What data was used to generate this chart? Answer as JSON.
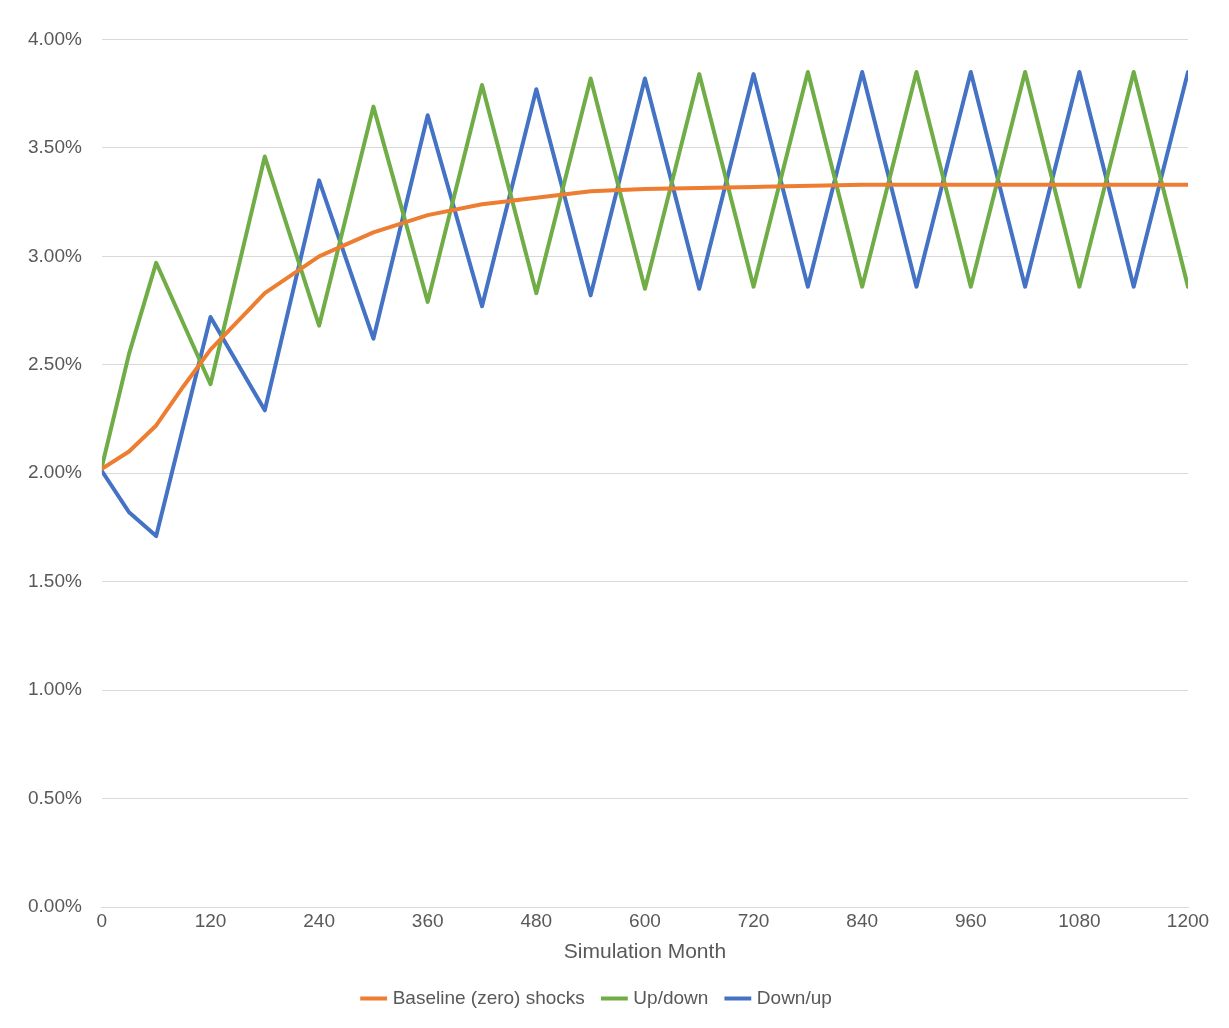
{
  "chart_data": {
    "type": "line",
    "xlabel": "Simulation Month",
    "xlim": [
      0,
      1200
    ],
    "xticks": [
      0,
      120,
      240,
      360,
      480,
      600,
      720,
      840,
      960,
      1080,
      1200
    ],
    "ylim": [
      0,
      4
    ],
    "yticks": [
      {
        "value": 0,
        "label": "0.00%"
      },
      {
        "value": 0.5,
        "label": "0.50%"
      },
      {
        "value": 1,
        "label": "1.00%"
      },
      {
        "value": 1.5,
        "label": "1.50%"
      },
      {
        "value": 2,
        "label": "2.00%"
      },
      {
        "value": 2.5,
        "label": "2.50%"
      },
      {
        "value": 3,
        "label": "3.00%"
      },
      {
        "value": 3.5,
        "label": "3.50%"
      },
      {
        "value": 4,
        "label": "4.00%"
      }
    ],
    "grid": "y",
    "legend": "bottom",
    "marker": "none",
    "line_style": "solid",
    "series": [
      {
        "name": "Baseline (zero) shocks",
        "color": "#ed7d31",
        "x": [
          0,
          30,
          60,
          90,
          120,
          180,
          240,
          300,
          360,
          420,
          480,
          540,
          600,
          720,
          840,
          1200
        ],
        "values": [
          2.02,
          2.1,
          2.22,
          2.4,
          2.57,
          2.83,
          3.0,
          3.11,
          3.19,
          3.24,
          3.27,
          3.3,
          3.31,
          3.32,
          3.33,
          3.33
        ]
      },
      {
        "name": "Up/down",
        "color": "#70ad47",
        "x": [
          0,
          30,
          60,
          120,
          180,
          240,
          300,
          360,
          420,
          480,
          540,
          600,
          660,
          720,
          780,
          840,
          900,
          960,
          1020,
          1080,
          1140,
          1200
        ],
        "values": [
          2.03,
          2.55,
          2.97,
          2.41,
          3.46,
          2.68,
          3.69,
          2.79,
          3.79,
          2.83,
          3.82,
          2.85,
          3.84,
          2.86,
          3.85,
          2.86,
          3.85,
          2.86,
          3.85,
          2.86,
          3.85,
          2.86
        ]
      },
      {
        "name": "Down/up",
        "color": "#4472c4",
        "x": [
          0,
          30,
          60,
          120,
          180,
          240,
          300,
          360,
          420,
          480,
          540,
          600,
          660,
          720,
          780,
          840,
          900,
          960,
          1020,
          1080,
          1140,
          1200
        ],
        "values": [
          2.01,
          1.82,
          1.71,
          2.72,
          2.29,
          3.35,
          2.62,
          3.65,
          2.77,
          3.77,
          2.82,
          3.82,
          2.85,
          3.84,
          2.86,
          3.85,
          2.86,
          3.85,
          2.86,
          3.85,
          2.86,
          3.85
        ]
      }
    ]
  }
}
